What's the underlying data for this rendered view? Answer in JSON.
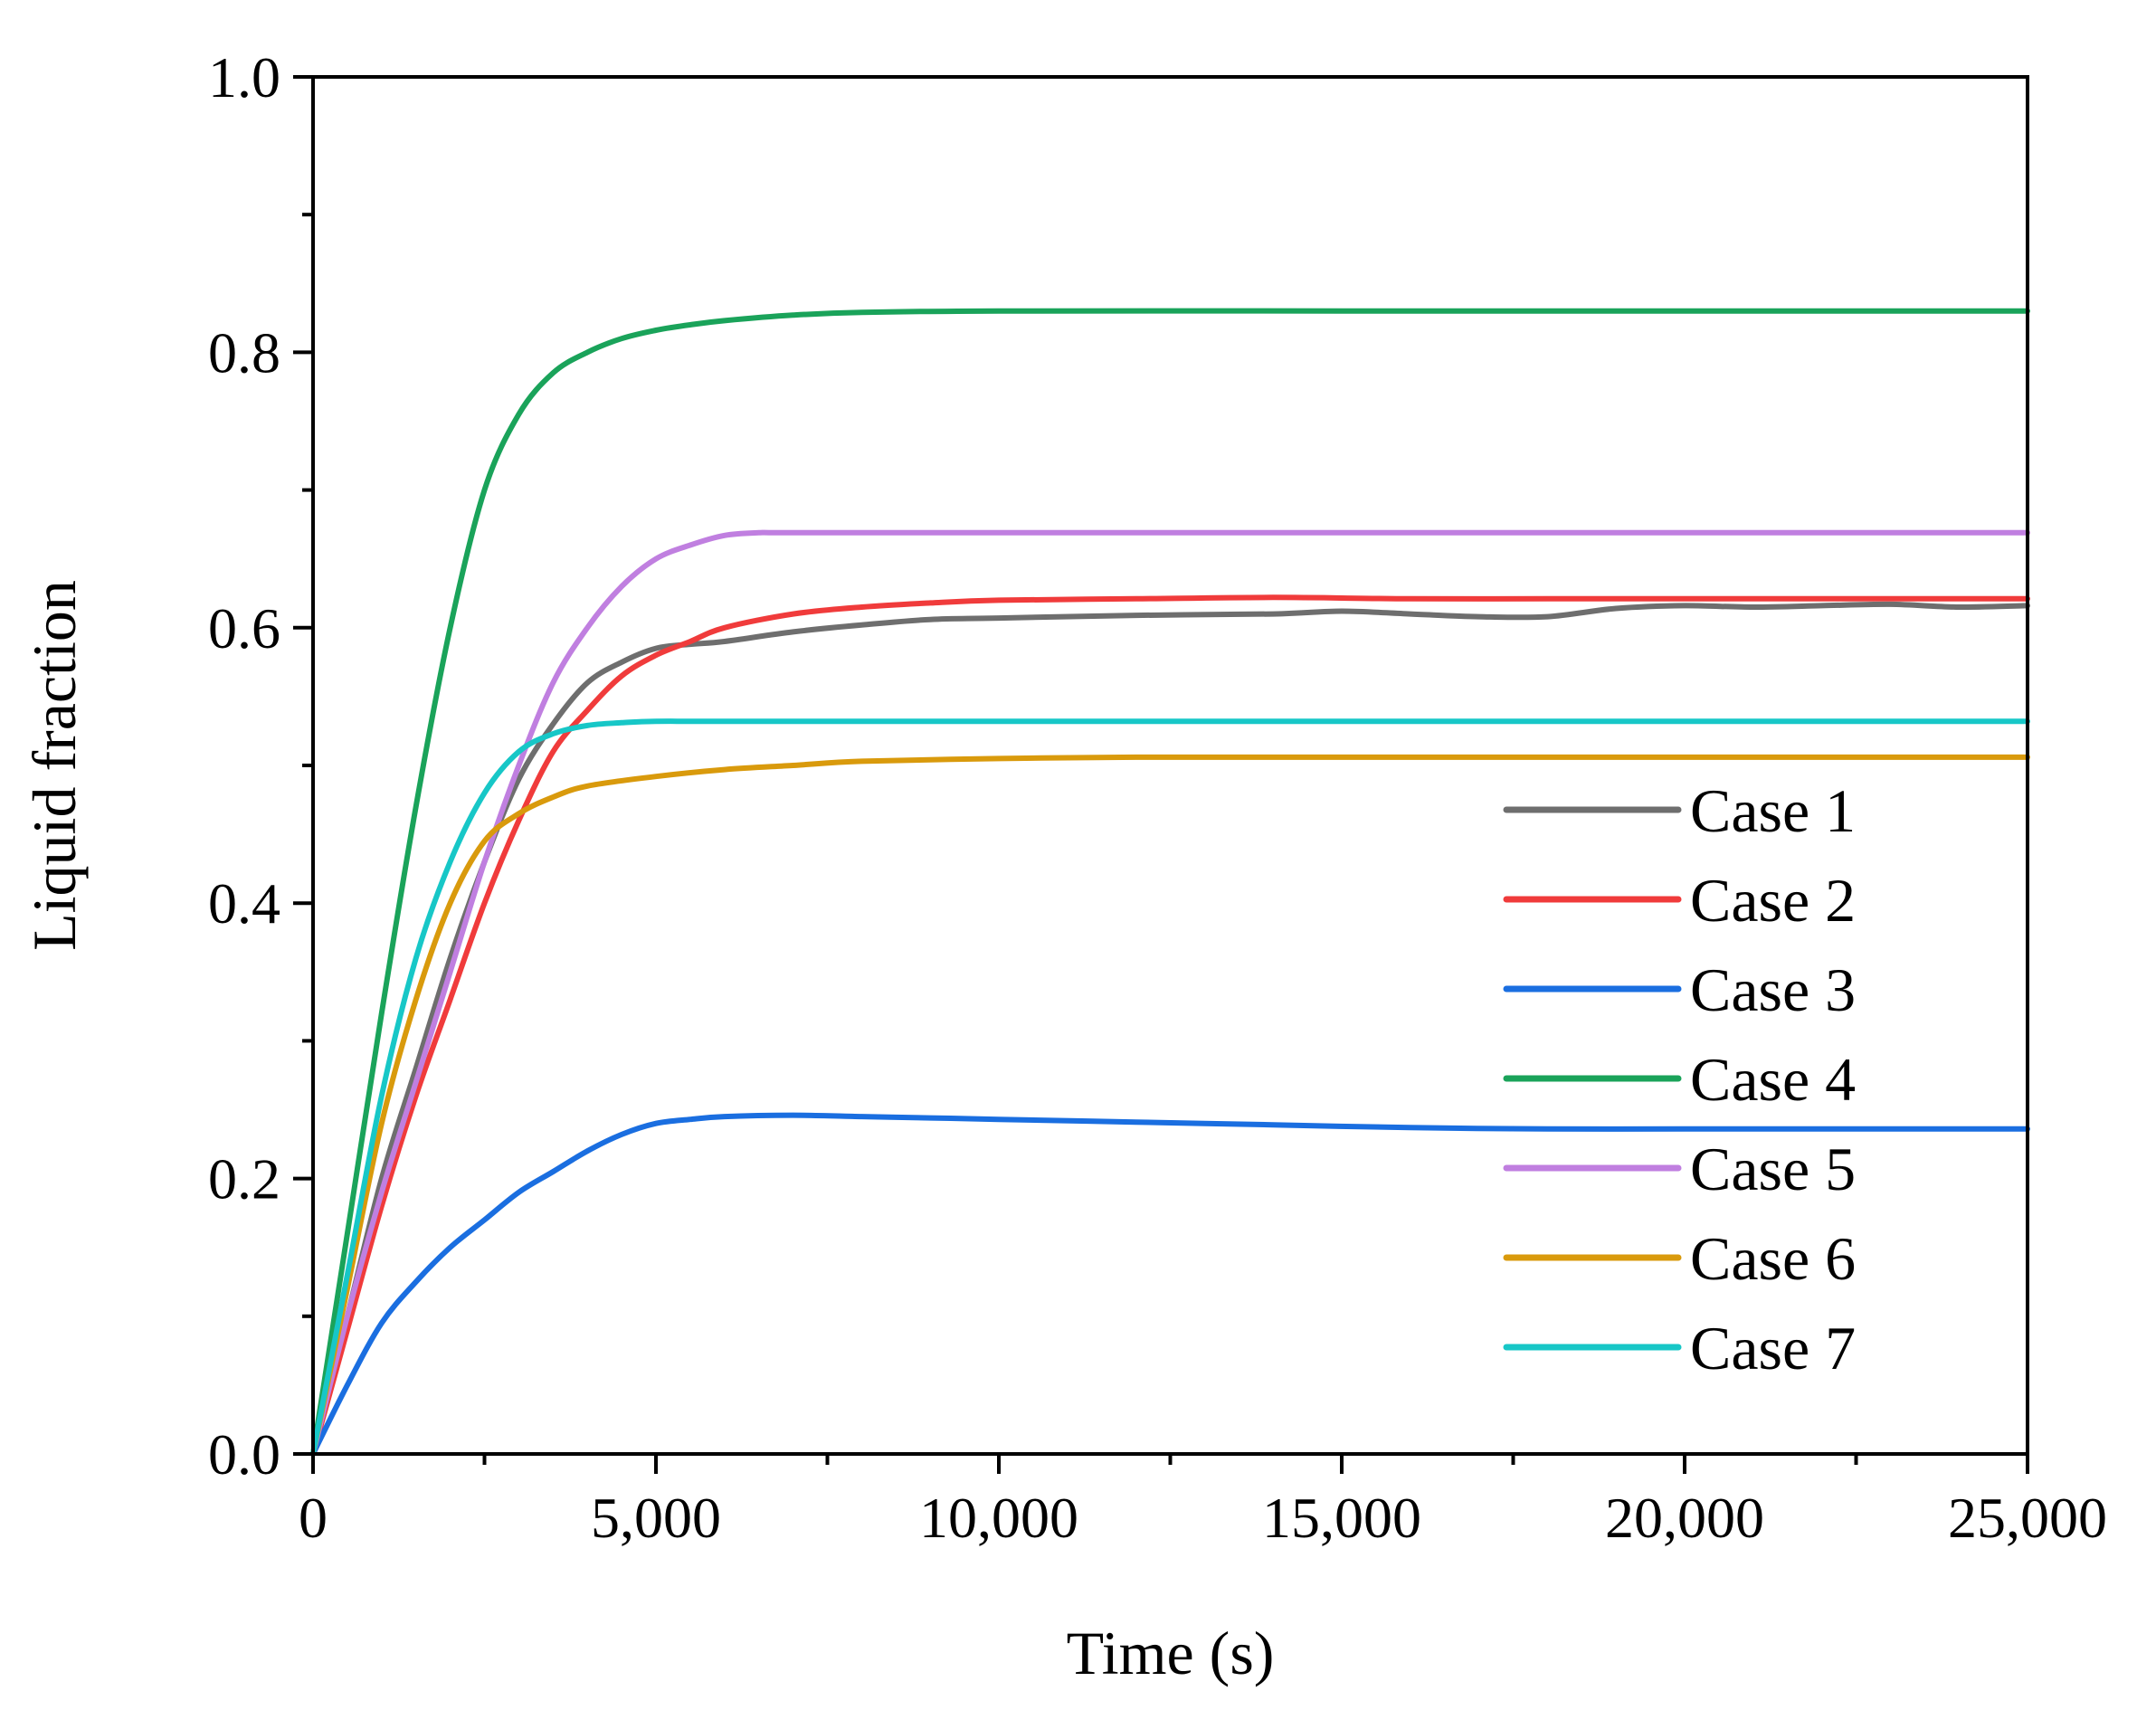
{
  "chart_data": {
    "type": "line",
    "title": "",
    "xlabel": "Time (s)",
    "ylabel": "Liquid fraction",
    "xlim": [
      0,
      25000
    ],
    "ylim": [
      0,
      1.0
    ],
    "x_ticks": [
      0,
      5000,
      10000,
      15000,
      20000,
      25000
    ],
    "x_tick_labels": [
      "0",
      "5,000",
      "10,000",
      "15,000",
      "20,000",
      "25,000"
    ],
    "y_ticks": [
      0,
      0.2,
      0.4,
      0.6,
      0.8,
      1.0
    ],
    "y_tick_labels": [
      "0.0",
      "0.2",
      "0.4",
      "0.6",
      "0.8",
      "1.0"
    ],
    "grid": false,
    "legend_position": "right",
    "series": [
      {
        "name": "Case 1",
        "color": "#6e6e6e",
        "points": [
          [
            0,
            0
          ],
          [
            500,
            0.1
          ],
          [
            1000,
            0.2
          ],
          [
            1500,
            0.28
          ],
          [
            2000,
            0.36
          ],
          [
            2500,
            0.43
          ],
          [
            3000,
            0.49
          ],
          [
            3500,
            0.53
          ],
          [
            4000,
            0.56
          ],
          [
            4500,
            0.575
          ],
          [
            5000,
            0.585
          ],
          [
            5500,
            0.588
          ],
          [
            6000,
            0.59
          ],
          [
            7000,
            0.597
          ],
          [
            8000,
            0.602
          ],
          [
            9000,
            0.606
          ],
          [
            10000,
            0.607
          ],
          [
            12000,
            0.609
          ],
          [
            14000,
            0.61
          ],
          [
            15000,
            0.612
          ],
          [
            16000,
            0.61
          ],
          [
            17000,
            0.608
          ],
          [
            18000,
            0.608
          ],
          [
            19000,
            0.614
          ],
          [
            20000,
            0.616
          ],
          [
            21000,
            0.615
          ],
          [
            22000,
            0.616
          ],
          [
            23000,
            0.617
          ],
          [
            24000,
            0.615
          ],
          [
            25000,
            0.616
          ]
        ]
      },
      {
        "name": "Case 2",
        "color": "#f03b3b",
        "points": [
          [
            0,
            0
          ],
          [
            500,
            0.09
          ],
          [
            1000,
            0.18
          ],
          [
            1500,
            0.26
          ],
          [
            2000,
            0.33
          ],
          [
            2500,
            0.4
          ],
          [
            3000,
            0.46
          ],
          [
            3500,
            0.51
          ],
          [
            4000,
            0.54
          ],
          [
            4500,
            0.565
          ],
          [
            5000,
            0.58
          ],
          [
            5500,
            0.59
          ],
          [
            6000,
            0.6
          ],
          [
            7000,
            0.61
          ],
          [
            8000,
            0.615
          ],
          [
            9000,
            0.618
          ],
          [
            10000,
            0.62
          ],
          [
            12000,
            0.621
          ],
          [
            14000,
            0.622
          ],
          [
            16000,
            0.621
          ],
          [
            18000,
            0.621
          ],
          [
            20000,
            0.621
          ],
          [
            22000,
            0.621
          ],
          [
            25000,
            0.621
          ]
        ]
      },
      {
        "name": "Case 3",
        "color": "#1a6ee0",
        "points": [
          [
            0,
            0
          ],
          [
            500,
            0.05
          ],
          [
            1000,
            0.095
          ],
          [
            1500,
            0.125
          ],
          [
            2000,
            0.15
          ],
          [
            2500,
            0.17
          ],
          [
            3000,
            0.19
          ],
          [
            3500,
            0.205
          ],
          [
            4000,
            0.22
          ],
          [
            4500,
            0.232
          ],
          [
            5000,
            0.24
          ],
          [
            5500,
            0.243
          ],
          [
            6000,
            0.245
          ],
          [
            7000,
            0.246
          ],
          [
            8000,
            0.245
          ],
          [
            9000,
            0.244
          ],
          [
            10000,
            0.243
          ],
          [
            12000,
            0.241
          ],
          [
            14000,
            0.239
          ],
          [
            16000,
            0.237
          ],
          [
            18000,
            0.236
          ],
          [
            20000,
            0.236
          ],
          [
            22000,
            0.236
          ],
          [
            25000,
            0.236
          ]
        ]
      },
      {
        "name": "Case 4",
        "color": "#1aa35a",
        "points": [
          [
            0,
            0
          ],
          [
            500,
            0.16
          ],
          [
            1000,
            0.32
          ],
          [
            1500,
            0.47
          ],
          [
            2000,
            0.6
          ],
          [
            2500,
            0.7
          ],
          [
            3000,
            0.755
          ],
          [
            3500,
            0.785
          ],
          [
            4000,
            0.8
          ],
          [
            4500,
            0.81
          ],
          [
            5000,
            0.816
          ],
          [
            5500,
            0.82
          ],
          [
            6000,
            0.823
          ],
          [
            7000,
            0.827
          ],
          [
            8000,
            0.829
          ],
          [
            10000,
            0.83
          ],
          [
            15000,
            0.83
          ],
          [
            20000,
            0.83
          ],
          [
            25000,
            0.83
          ]
        ]
      },
      {
        "name": "Case 5",
        "color": "#c07fe0",
        "points": [
          [
            0,
            0
          ],
          [
            500,
            0.1
          ],
          [
            1000,
            0.19
          ],
          [
            1500,
            0.27
          ],
          [
            2000,
            0.35
          ],
          [
            2500,
            0.43
          ],
          [
            3000,
            0.5
          ],
          [
            3500,
            0.56
          ],
          [
            4000,
            0.6
          ],
          [
            4500,
            0.63
          ],
          [
            5000,
            0.65
          ],
          [
            5500,
            0.66
          ],
          [
            6000,
            0.667
          ],
          [
            6500,
            0.669
          ],
          [
            7000,
            0.669
          ],
          [
            10000,
            0.669
          ],
          [
            15000,
            0.669
          ],
          [
            20000,
            0.669
          ],
          [
            25000,
            0.669
          ]
        ]
      },
      {
        "name": "Case 6",
        "color": "#d99a0c",
        "points": [
          [
            0,
            0
          ],
          [
            500,
            0.12
          ],
          [
            1000,
            0.24
          ],
          [
            1500,
            0.33
          ],
          [
            2000,
            0.4
          ],
          [
            2500,
            0.445
          ],
          [
            3000,
            0.465
          ],
          [
            3500,
            0.477
          ],
          [
            4000,
            0.485
          ],
          [
            5000,
            0.492
          ],
          [
            6000,
            0.497
          ],
          [
            7000,
            0.5
          ],
          [
            8000,
            0.503
          ],
          [
            10000,
            0.505
          ],
          [
            12000,
            0.506
          ],
          [
            15000,
            0.506
          ],
          [
            20000,
            0.506
          ],
          [
            25000,
            0.506
          ]
        ]
      },
      {
        "name": "Case 7",
        "color": "#17c7c7",
        "points": [
          [
            0,
            0
          ],
          [
            500,
            0.13
          ],
          [
            1000,
            0.26
          ],
          [
            1500,
            0.36
          ],
          [
            2000,
            0.43
          ],
          [
            2500,
            0.48
          ],
          [
            3000,
            0.51
          ],
          [
            3500,
            0.523
          ],
          [
            4000,
            0.529
          ],
          [
            4500,
            0.531
          ],
          [
            5000,
            0.532
          ],
          [
            6000,
            0.532
          ],
          [
            10000,
            0.532
          ],
          [
            15000,
            0.532
          ],
          [
            20000,
            0.532
          ],
          [
            25000,
            0.532
          ]
        ]
      }
    ]
  }
}
